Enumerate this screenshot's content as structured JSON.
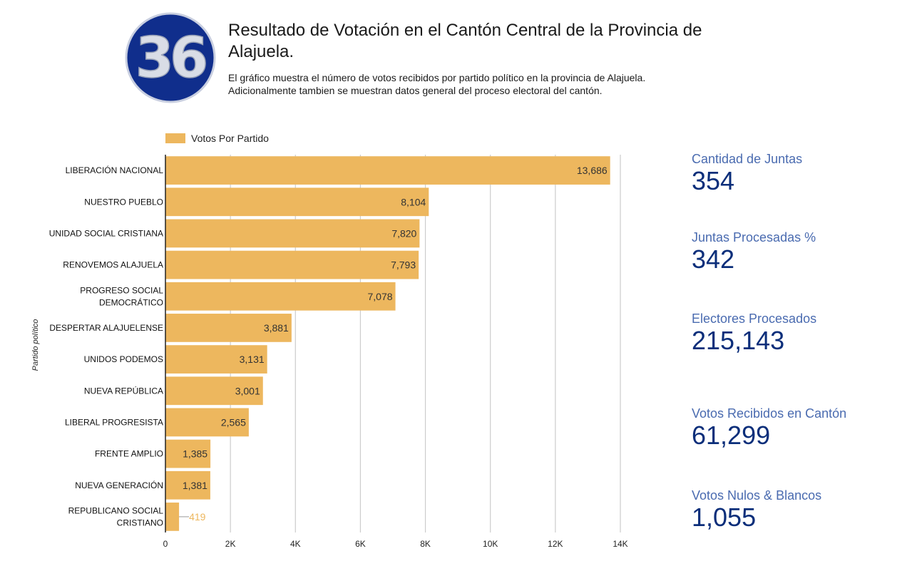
{
  "header": {
    "logo_text": "36",
    "title": "Resultado de Votación en el Cantón Central de la Provincia de Alajuela.",
    "subtitle_line1": "El gráfico muestra el número de votos recibidos por partido político en la provincia de Alajuela.",
    "subtitle_line2": "Adicionalmente tambien se muestran datos general del proceso electoral del cantón."
  },
  "colors": {
    "bar": "#EDB75E",
    "accent_dark": "#0B2E7A",
    "accent_label": "#4A6BB0",
    "logo_blue": "#102E8C",
    "grid": "#CCCCCC"
  },
  "chart_data": {
    "type": "bar",
    "orientation": "horizontal",
    "ylabel": "Partido político",
    "xlabel": "",
    "xlim": [
      0,
      14000
    ],
    "xticks": [
      "0",
      "2K",
      "4K",
      "6K",
      "8K",
      "10K",
      "12K",
      "14K"
    ],
    "xtick_values": [
      0,
      2000,
      4000,
      6000,
      8000,
      10000,
      12000,
      14000
    ],
    "grid": "vertical",
    "legend_position": "top-left",
    "series": [
      {
        "name": "Votos Por Partido",
        "values": [
          13686,
          8104,
          7820,
          7793,
          7078,
          3881,
          3131,
          3001,
          2565,
          1385,
          1381,
          419
        ],
        "value_labels": [
          "13,686",
          "8,104",
          "7,820",
          "7,793",
          "7,078",
          "3,881",
          "3,131",
          "3,001",
          "2,565",
          "1,385",
          "1,381",
          "419"
        ]
      }
    ],
    "categories": [
      [
        "LIBERACIÓN NACIONAL"
      ],
      [
        "NUESTRO PUEBLO"
      ],
      [
        "UNIDAD SOCIAL CRISTIANA"
      ],
      [
        "RENOVEMOS ALAJUELA"
      ],
      [
        "PROGRESO SOCIAL",
        "DEMOCRÁTICO"
      ],
      [
        "DESPERTAR ALAJUELENSE"
      ],
      [
        "UNIDOS PODEMOS"
      ],
      [
        "NUEVA REPÚBLICA"
      ],
      [
        "LIBERAL PROGRESISTA"
      ],
      [
        "FRENTE AMPLIO"
      ],
      [
        "NUEVA GENERACIÓN"
      ],
      [
        "REPUBLICANO SOCIAL",
        "CRISTIANO"
      ]
    ]
  },
  "stats": [
    {
      "label": "Cantidad de Juntas",
      "value": "354"
    },
    {
      "label": "Juntas Procesadas %",
      "value": "342"
    },
    {
      "label": "Electores Procesados",
      "value": "215,143"
    },
    {
      "label": "Votos Recibidos en Cantón",
      "value": "61,299"
    },
    {
      "label": "Votos Nulos & Blancos",
      "value": "1,055"
    }
  ]
}
